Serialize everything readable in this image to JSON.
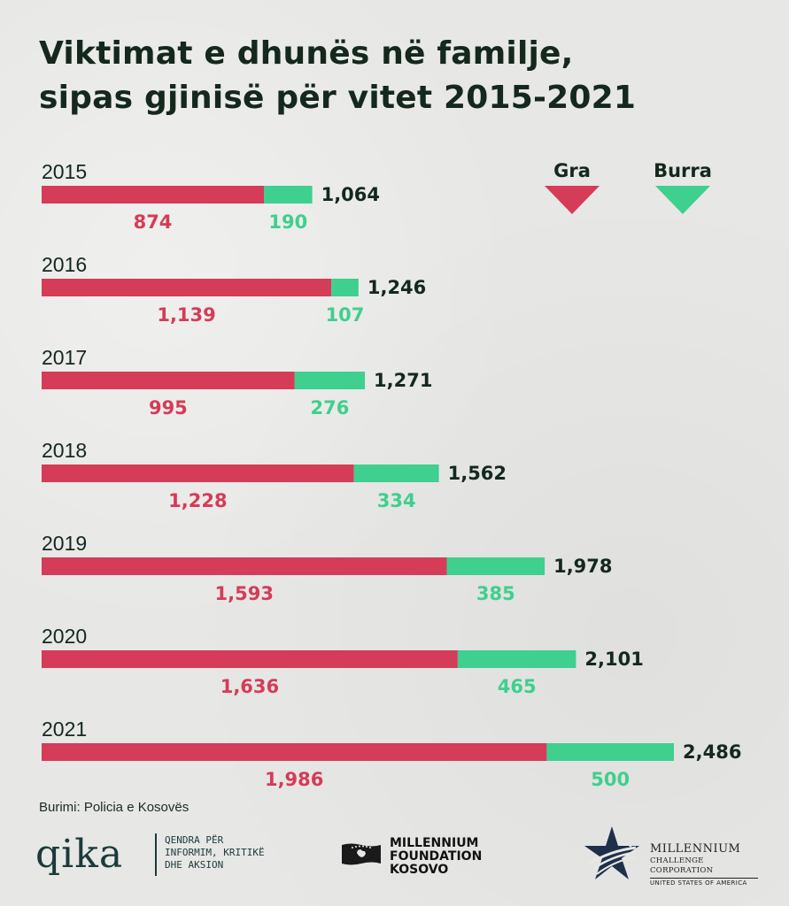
{
  "title": {
    "line1": "Viktimat e dhunës në familje,",
    "line2": "sipas gjinisë për vitet 2015-2021"
  },
  "colors": {
    "women": "#d43c57",
    "men": "#3fcf8e",
    "text": "#14281d"
  },
  "chart_data": {
    "type": "bar",
    "orientation": "horizontal",
    "stacked": true,
    "title": "Viktimat e dhunës në familje, sipas gjinisë për vitet 2015-2021",
    "categories": [
      "2015",
      "2016",
      "2017",
      "2018",
      "2019",
      "2020",
      "2021"
    ],
    "series": [
      {
        "name": "Gra",
        "values": [
          874,
          1139,
          995,
          1228,
          1593,
          1636,
          1986
        ]
      },
      {
        "name": "Burra",
        "values": [
          190,
          107,
          276,
          334,
          385,
          465,
          500
        ]
      }
    ],
    "totals": [
      1064,
      1246,
      1271,
      1562,
      1978,
      2101,
      2486
    ],
    "labels": {
      "women": [
        "874",
        "1,139",
        "995",
        "1,228",
        "1,593",
        "1,636",
        "1,986"
      ],
      "men": [
        "190",
        "107",
        "276",
        "334",
        "385",
        "465",
        "500"
      ],
      "totals": [
        "1,064",
        "1,246",
        "1,271",
        "1,562",
        "1,978",
        "2,101",
        "2,486"
      ]
    },
    "legend": {
      "position": "top-right",
      "entries": [
        "Gra",
        "Burra"
      ]
    },
    "xlim": [
      0,
      2486
    ]
  },
  "source": "Burimi: Policia e Kosovës",
  "logos": {
    "qika": {
      "wordmark": "qika",
      "tagline": "QENDRA PËR\nINFORMIM, KRITIKË\nDHE AKSION"
    },
    "mfk": {
      "text": "MILLENNIUM\nFOUNDATION\nKOSOVO"
    },
    "mcc": {
      "line1": "MILLENNIUM",
      "line2": "CHALLENGE CORPORATION",
      "line3": "UNITED STATES OF AMERICA"
    }
  }
}
